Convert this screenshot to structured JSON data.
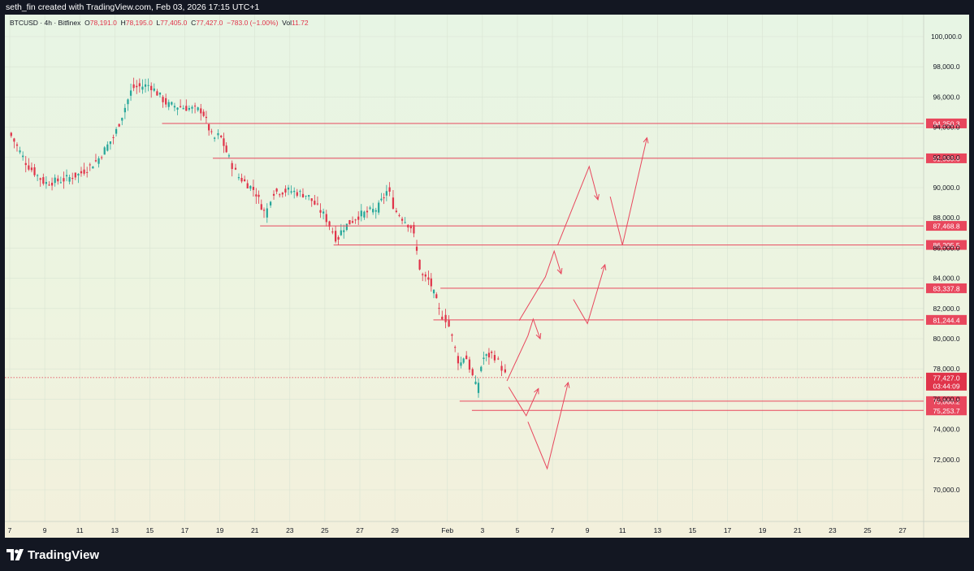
{
  "header": {
    "caption": "seth_fin created with TradingView.com, Feb 03, 2026 17:15 UTC+1"
  },
  "legend": {
    "symbol": "BTCUSD · 4h · Bitfinex",
    "open_label": "O",
    "open": "78,191.0",
    "high_label": "H",
    "high": "78,195.0",
    "low_label": "L",
    "low": "77,405.0",
    "close_label": "C",
    "close": "77,427.0",
    "change": "−783.0 (−1.00%)",
    "vol_label": "Vol",
    "vol": "11.72"
  },
  "footer": {
    "brand": "TradingView"
  },
  "colors": {
    "up": "#26a69a",
    "down": "#e0344a",
    "drawing": "#e8475d",
    "axis_text": "#131722",
    "grid": "#d9e4d3"
  },
  "chart_data": {
    "type": "candlestick",
    "interval": "4h",
    "symbol": "BTCUSD",
    "exchange": "Bitfinex",
    "ylim": [
      68800,
      102000
    ],
    "y_ticks": [
      "100,000.0",
      "98,000.0",
      "96,000.0",
      "94,000.0",
      "92,000.0",
      "90,000.0",
      "88,000.0",
      "86,000.0",
      "84,000.0",
      "82,000.0",
      "80,000.0",
      "78,000.0",
      "76,000.0",
      "74,000.0",
      "72,000.0",
      "70,000.0"
    ],
    "x_ticks": [
      "7",
      "9",
      "11",
      "13",
      "15",
      "17",
      "19",
      "21",
      "23",
      "25",
      "27",
      "29",
      "Feb",
      "3",
      "5",
      "7",
      "9",
      "11",
      "13",
      "15",
      "17",
      "19",
      "21",
      "23",
      "25",
      "27"
    ],
    "price_path": [
      [
        7,
        93600
      ],
      [
        8,
        91500
      ],
      [
        9,
        90300
      ],
      [
        10,
        90500
      ],
      [
        11,
        90900
      ],
      [
        12,
        91800
      ],
      [
        13,
        93500
      ],
      [
        14,
        96600
      ],
      [
        15,
        96800
      ],
      [
        16,
        95500
      ],
      [
        17,
        95300
      ],
      [
        18,
        95100
      ],
      [
        18.6,
        93200
      ],
      [
        19,
        93500
      ],
      [
        19.6,
        91700
      ],
      [
        20,
        90800
      ],
      [
        21,
        89800
      ],
      [
        21.6,
        88200
      ],
      [
        22,
        89700
      ],
      [
        23,
        89800
      ],
      [
        24,
        89500
      ],
      [
        25,
        88100
      ],
      [
        25.7,
        86500
      ],
      [
        26,
        87300
      ],
      [
        27,
        88200
      ],
      [
        28,
        88600
      ],
      [
        28.6,
        89900
      ],
      [
        29,
        88500
      ],
      [
        30,
        87300
      ],
      [
        30.5,
        84200
      ],
      [
        31,
        83800
      ],
      [
        31.6,
        81600
      ],
      [
        32,
        81200
      ],
      [
        32.7,
        78200
      ],
      [
        33,
        79000
      ],
      [
        33.7,
        76600
      ],
      [
        34,
        78700
      ],
      [
        34.6,
        79000
      ],
      [
        35,
        78300
      ],
      [
        35.4,
        77400
      ]
    ],
    "horizontal_levels": [
      {
        "price": 94250.3,
        "label": "94,250.3",
        "from_day": 15.7
      },
      {
        "price": 91939.6,
        "label": "91,939.6",
        "from_day": 18.6
      },
      {
        "price": 87468.8,
        "label": "87,468.8",
        "from_day": 21.3
      },
      {
        "price": 86205.5,
        "label": "86,205.5",
        "from_day": 25.5
      },
      {
        "price": 83337.8,
        "label": "83,337.8",
        "from_day": 31.6
      },
      {
        "price": 81244.4,
        "label": "81,244.4",
        "from_day": 31.2
      },
      {
        "price": 75868.2,
        "label": "75,868.2",
        "from_day": 32.7
      },
      {
        "price": 75253.7,
        "label": "75,253.7",
        "from_day": 33.4
      }
    ],
    "last_price": {
      "price": 77427.0,
      "label": "77,427.0",
      "countdown": "03:44:09"
    },
    "projections": [
      {
        "points": [
          [
            35.4,
            77200
          ],
          [
            36.6,
            80200
          ],
          [
            36.9,
            81300
          ],
          [
            37.3,
            80000
          ]
        ]
      },
      {
        "points": [
          [
            36.1,
            81200
          ],
          [
            37.6,
            84100
          ],
          [
            38.1,
            85800
          ],
          [
            38.5,
            84300
          ]
        ]
      },
      {
        "points": [
          [
            38.3,
            86200
          ],
          [
            40.1,
            91400
          ],
          [
            40.6,
            89200
          ]
        ]
      },
      {
        "points": [
          [
            35.5,
            76800
          ],
          [
            36.5,
            74900
          ],
          [
            37.2,
            76700
          ]
        ]
      },
      {
        "points": [
          [
            36.6,
            74500
          ],
          [
            37.7,
            71400
          ],
          [
            38.9,
            77100
          ]
        ]
      },
      {
        "points": [
          [
            39.2,
            82600
          ],
          [
            40.0,
            81000
          ],
          [
            41.0,
            84900
          ]
        ]
      },
      {
        "points": [
          [
            41.3,
            89400
          ],
          [
            42.0,
            86200
          ],
          [
            43.4,
            93300
          ]
        ]
      }
    ]
  }
}
